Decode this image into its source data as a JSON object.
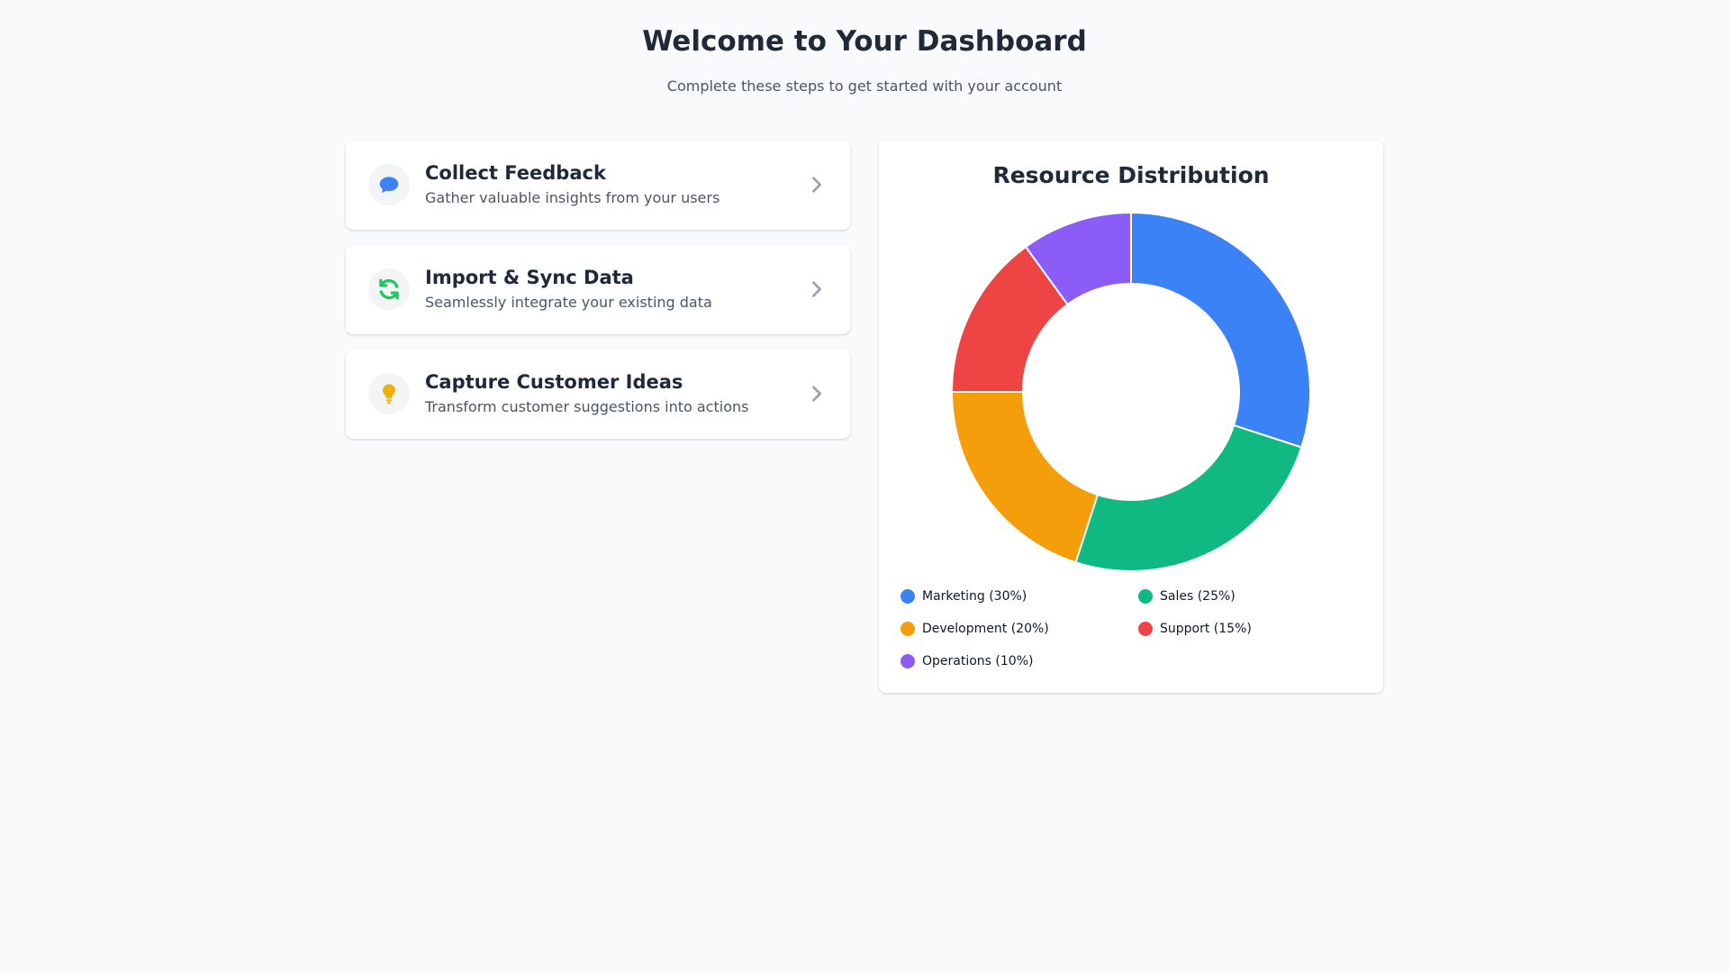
{
  "header": {
    "title": "Welcome to Your Dashboard",
    "subtitle": "Complete these steps to get started with your account"
  },
  "steps": [
    {
      "title": "Collect Feedback",
      "description": "Gather valuable insights from your users",
      "icon": "chat-bubble-icon",
      "icon_color": "#3b82f6"
    },
    {
      "title": "Import & Sync Data",
      "description": "Seamlessly integrate your existing data",
      "icon": "sync-icon",
      "icon_color": "#22c55e"
    },
    {
      "title": "Capture Customer Ideas",
      "description": "Transform customer suggestions into actions",
      "icon": "lightbulb-icon",
      "icon_color": "#eab308"
    }
  ],
  "chart_data": {
    "type": "pie",
    "style": "donut",
    "title": "Resource Distribution",
    "categories": [
      "Marketing",
      "Sales",
      "Development",
      "Support",
      "Operations"
    ],
    "values": [
      30,
      25,
      20,
      15,
      10
    ],
    "colors": [
      "#3b82f6",
      "#10b981",
      "#f59e0b",
      "#ef4444",
      "#8b5cf6"
    ],
    "legend": [
      "Marketing (30%)",
      "Sales (25%)",
      "Development (20%)",
      "Support (15%)",
      "Operations (10%)"
    ],
    "legend_position": "bottom"
  }
}
